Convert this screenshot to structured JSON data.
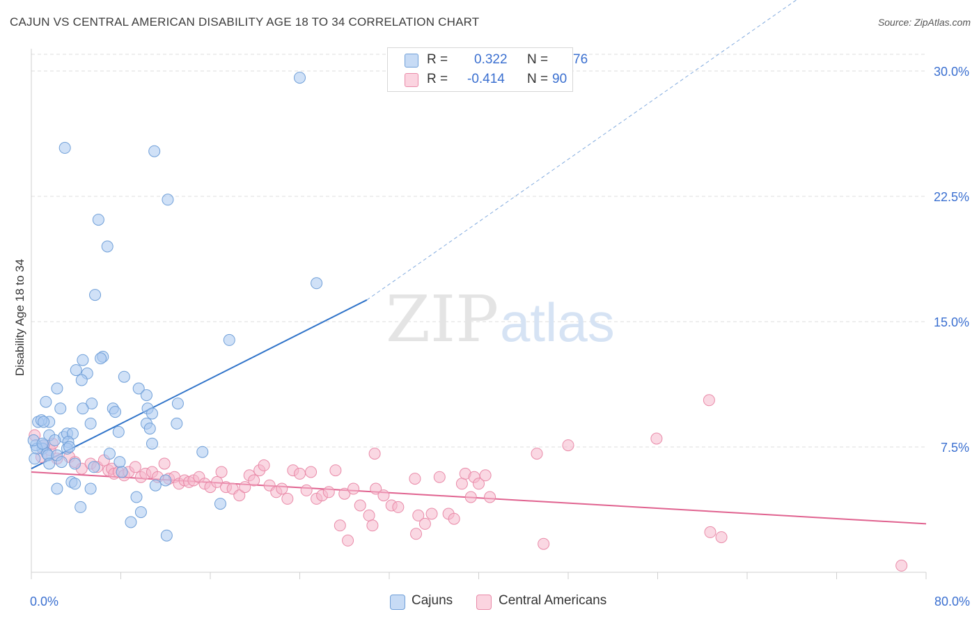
{
  "title": "CAJUN VS CENTRAL AMERICAN DISABILITY AGE 18 TO 34 CORRELATION CHART",
  "source": "Source: ZipAtlas.com",
  "watermark": {
    "zip": "ZIP",
    "atlas": "atlas"
  },
  "legend": {
    "rows": [
      {
        "r_label": "R =",
        "r_value": "0.322",
        "n_label": "N =",
        "n_value": "76"
      },
      {
        "r_label": "R =",
        "r_value": "-0.414",
        "n_label": "N =",
        "n_value": "90"
      }
    ]
  },
  "bottom_legend": {
    "series1": "Cajuns",
    "series2": "Central Americans"
  },
  "colors": {
    "cajun_fill": "#a9c8f0",
    "cajun_stroke": "#6f9fd8",
    "cajun_line": "#2f73c9",
    "central_fill": "#f6b8cc",
    "central_stroke": "#e98aa8",
    "central_line": "#e0628f",
    "tick_label": "#3a6fd0",
    "grid": "#dcdcdc"
  },
  "chart_data": {
    "type": "scatter",
    "title": "CAJUN VS CENTRAL AMERICAN DISABILITY AGE 18 TO 34 CORRELATION CHART",
    "xlabel": "",
    "ylabel": "Disability Age 18 to 34",
    "xlim": [
      0,
      80
    ],
    "ylim": [
      0,
      31
    ],
    "x_tick_labels": [
      "0.0%",
      "80.0%"
    ],
    "y_ticks": [
      7.5,
      15.0,
      22.5,
      30.0
    ],
    "y_tick_labels": [
      "7.5%",
      "15.0%",
      "22.5%",
      "30.0%"
    ],
    "grid": true,
    "legend_position": "top-center",
    "series": [
      {
        "name": "Cajuns",
        "R": 0.322,
        "N": 76,
        "trend": {
          "x": [
            0,
            30
          ],
          "y": [
            6.2,
            16.3
          ],
          "extend_to": [
            70,
            35.0
          ]
        },
        "points": [
          [
            24,
            29.6
          ],
          [
            3,
            25.4
          ],
          [
            11,
            25.2
          ],
          [
            12.2,
            22.3
          ],
          [
            6,
            21.1
          ],
          [
            6.8,
            19.5
          ],
          [
            5.7,
            16.6
          ],
          [
            25.5,
            17.3
          ],
          [
            17.7,
            13.9
          ],
          [
            6.4,
            12.9
          ],
          [
            6.2,
            12.8
          ],
          [
            4.6,
            12.7
          ],
          [
            4.0,
            12.1
          ],
          [
            5.0,
            11.9
          ],
          [
            4.5,
            11.5
          ],
          [
            8.3,
            11.7
          ],
          [
            2.3,
            11.0
          ],
          [
            9.6,
            11.0
          ],
          [
            10.3,
            10.6
          ],
          [
            1.3,
            10.2
          ],
          [
            5.4,
            10.1
          ],
          [
            13.1,
            10.1
          ],
          [
            2.6,
            9.8
          ],
          [
            4.6,
            9.8
          ],
          [
            7.3,
            9.8
          ],
          [
            7.5,
            9.6
          ],
          [
            10.4,
            9.8
          ],
          [
            10.8,
            9.5
          ],
          [
            13.0,
            8.9
          ],
          [
            1.6,
            9.0
          ],
          [
            0.6,
            9.0
          ],
          [
            0.9,
            9.1
          ],
          [
            1.1,
            9.0
          ],
          [
            5.3,
            8.9
          ],
          [
            10.3,
            8.9
          ],
          [
            10.6,
            8.6
          ],
          [
            7.8,
            8.4
          ],
          [
            1.6,
            8.2
          ],
          [
            2.9,
            8.1
          ],
          [
            3.2,
            8.3
          ],
          [
            3.7,
            8.3
          ],
          [
            2.1,
            7.9
          ],
          [
            3.3,
            7.8
          ],
          [
            1.1,
            7.6
          ],
          [
            1.0,
            7.4
          ],
          [
            10.8,
            7.7
          ],
          [
            0.4,
            7.6
          ],
          [
            0.5,
            7.4
          ],
          [
            3.2,
            7.4
          ],
          [
            3.4,
            7.5
          ],
          [
            15.3,
            7.2
          ],
          [
            7.0,
            7.1
          ],
          [
            1.4,
            7.1
          ],
          [
            1.5,
            7.0
          ],
          [
            2.3,
            7.0
          ],
          [
            7.9,
            6.6
          ],
          [
            1.6,
            6.5
          ],
          [
            2.7,
            6.6
          ],
          [
            3.9,
            6.5
          ],
          [
            5.6,
            6.3
          ],
          [
            8.1,
            6.0
          ],
          [
            12.0,
            5.5
          ],
          [
            2.3,
            5.0
          ],
          [
            5.3,
            5.0
          ],
          [
            3.6,
            5.4
          ],
          [
            3.9,
            5.3
          ],
          [
            11.1,
            5.2
          ],
          [
            9.4,
            4.5
          ],
          [
            16.9,
            4.1
          ],
          [
            4.4,
            3.9
          ],
          [
            9.8,
            3.6
          ],
          [
            8.9,
            3.0
          ],
          [
            12.1,
            2.2
          ],
          [
            0.3,
            6.8
          ],
          [
            0.2,
            7.9
          ],
          [
            1.0,
            7.7
          ]
        ]
      },
      {
        "name": "Central Americans",
        "R": -0.414,
        "N": 90,
        "trend": {
          "x": [
            0,
            80
          ],
          "y": [
            6.0,
            2.9
          ]
        },
        "points": [
          [
            60.6,
            10.3
          ],
          [
            55.9,
            8.0
          ],
          [
            48.0,
            7.6
          ],
          [
            45.2,
            7.1
          ],
          [
            30.7,
            7.1
          ],
          [
            0.3,
            8.2
          ],
          [
            1.1,
            7.6
          ],
          [
            1.7,
            7.3
          ],
          [
            1.9,
            7.7
          ],
          [
            0.9,
            6.9
          ],
          [
            2.3,
            6.8
          ],
          [
            3.4,
            6.9
          ],
          [
            3.9,
            6.6
          ],
          [
            4.5,
            6.2
          ],
          [
            5.3,
            6.5
          ],
          [
            5.9,
            6.3
          ],
          [
            6.5,
            6.7
          ],
          [
            6.9,
            6.1
          ],
          [
            7.2,
            6.2
          ],
          [
            7.4,
            5.9
          ],
          [
            7.8,
            6.0
          ],
          [
            8.3,
            5.8
          ],
          [
            8.7,
            6.0
          ],
          [
            9.3,
            6.3
          ],
          [
            9.8,
            5.7
          ],
          [
            10.2,
            5.9
          ],
          [
            10.8,
            6.0
          ],
          [
            11.3,
            5.7
          ],
          [
            11.9,
            6.5
          ],
          [
            12.3,
            5.6
          ],
          [
            12.8,
            5.7
          ],
          [
            13.2,
            5.3
          ],
          [
            13.7,
            5.5
          ],
          [
            14.1,
            5.4
          ],
          [
            14.5,
            5.5
          ],
          [
            15.0,
            5.7
          ],
          [
            15.5,
            5.3
          ],
          [
            16.0,
            5.1
          ],
          [
            16.6,
            5.4
          ],
          [
            17.0,
            6.0
          ],
          [
            17.4,
            5.1
          ],
          [
            18.0,
            5.0
          ],
          [
            18.6,
            4.6
          ],
          [
            19.1,
            5.1
          ],
          [
            19.5,
            5.8
          ],
          [
            19.9,
            5.5
          ],
          [
            20.4,
            6.1
          ],
          [
            20.8,
            6.4
          ],
          [
            21.3,
            5.2
          ],
          [
            21.9,
            4.8
          ],
          [
            22.4,
            5.0
          ],
          [
            22.9,
            4.4
          ],
          [
            23.4,
            6.1
          ],
          [
            24.0,
            5.9
          ],
          [
            24.6,
            4.9
          ],
          [
            25.0,
            6.0
          ],
          [
            25.5,
            4.4
          ],
          [
            26.0,
            4.6
          ],
          [
            26.6,
            4.8
          ],
          [
            27.2,
            6.1
          ],
          [
            28.0,
            4.7
          ],
          [
            28.8,
            5.0
          ],
          [
            29.4,
            4.0
          ],
          [
            30.2,
            3.4
          ],
          [
            30.8,
            5.0
          ],
          [
            31.5,
            4.6
          ],
          [
            32.2,
            4.0
          ],
          [
            32.8,
            3.9
          ],
          [
            34.3,
            5.6
          ],
          [
            34.6,
            3.4
          ],
          [
            35.2,
            2.9
          ],
          [
            35.8,
            3.5
          ],
          [
            36.5,
            5.7
          ],
          [
            37.3,
            3.5
          ],
          [
            37.8,
            3.2
          ],
          [
            38.5,
            5.3
          ],
          [
            38.8,
            5.9
          ],
          [
            39.3,
            4.5
          ],
          [
            39.6,
            5.7
          ],
          [
            40.0,
            5.3
          ],
          [
            40.6,
            5.8
          ],
          [
            41.0,
            4.5
          ],
          [
            27.6,
            2.8
          ],
          [
            30.5,
            2.8
          ],
          [
            34.4,
            2.3
          ],
          [
            45.8,
            1.7
          ],
          [
            28.3,
            1.9
          ],
          [
            60.7,
            2.4
          ],
          [
            61.7,
            2.1
          ],
          [
            77.8,
            0.4
          ]
        ]
      }
    ]
  }
}
